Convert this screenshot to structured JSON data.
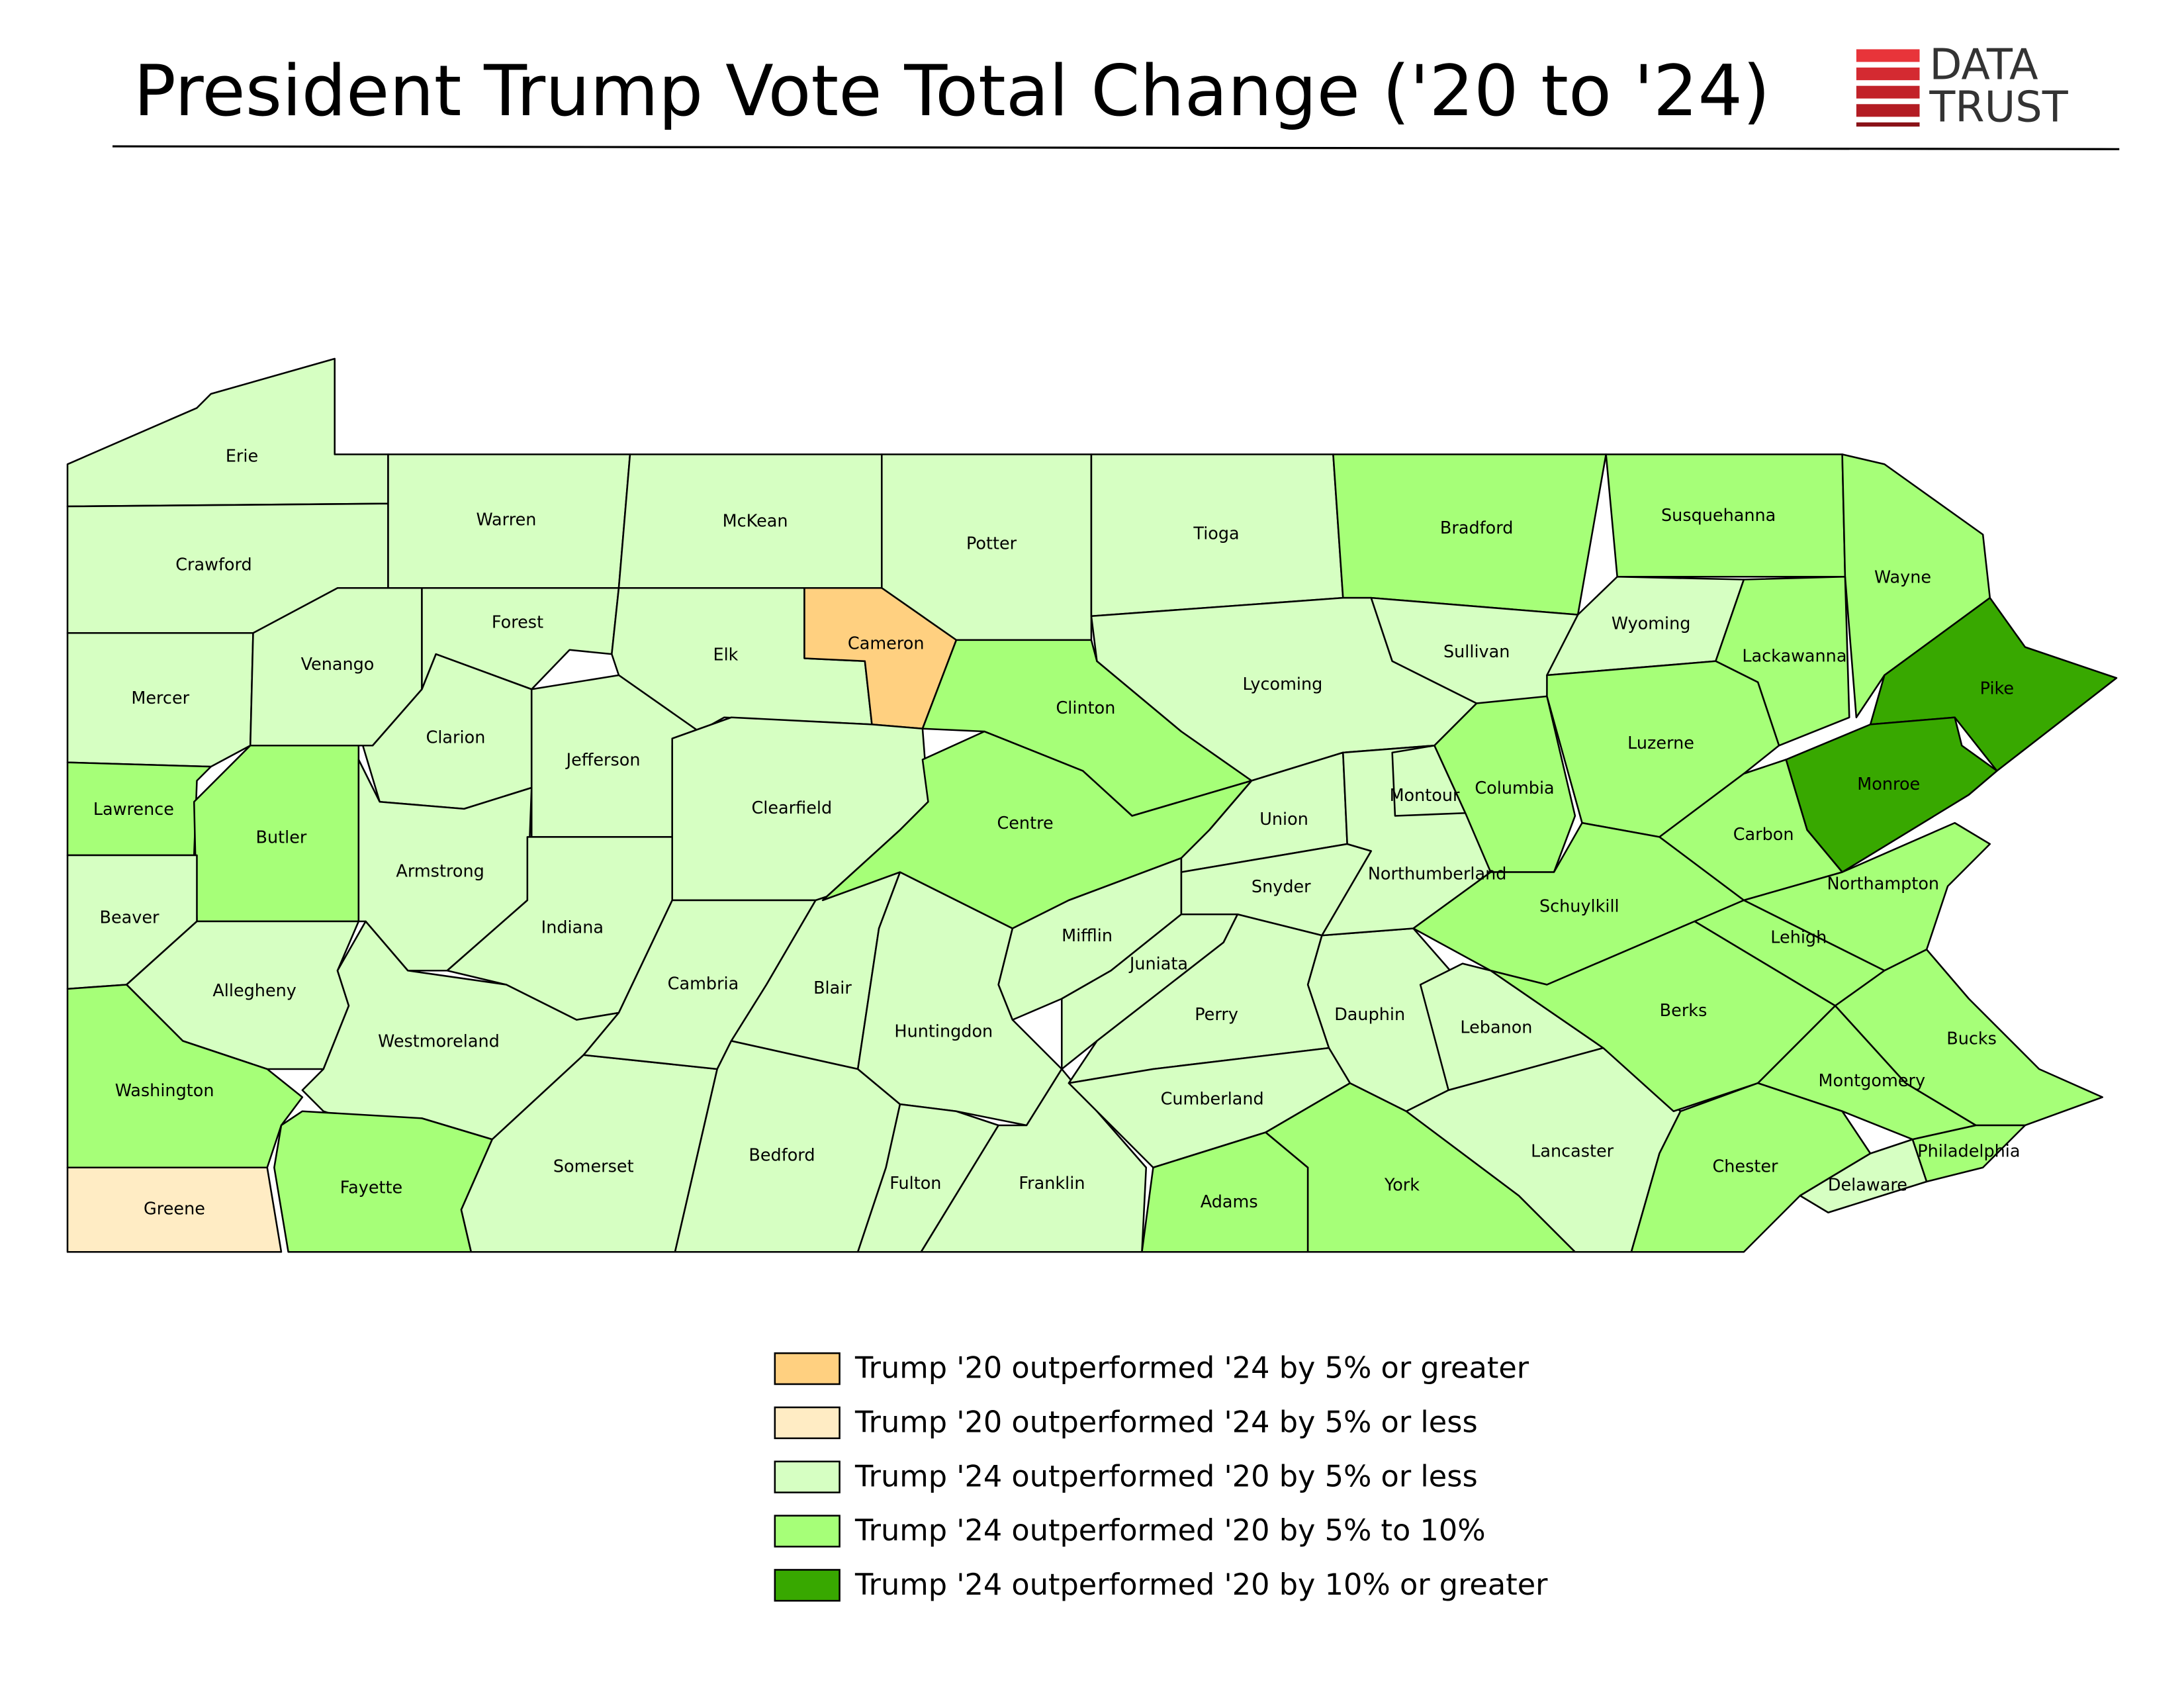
{
  "title": "President Trump Vote Total Change ('20 to '24)",
  "logo": [
    "DATA",
    "TRUST"
  ],
  "legend": [
    {
      "label": "Trump '20 outperformed '24 by 5% or greater",
      "color": "#ffd080"
    },
    {
      "label": "Trump '20 outperformed '24 by 5% or less",
      "color": "#ffecc4"
    },
    {
      "label": "Trump '24 outperformed '20 by 5% or less",
      "color": "#d6ffc2"
    },
    {
      "label": "Trump '24 outperformed '20 by 5% to 10%",
      "color": "#a6ff78"
    },
    {
      "label": "Trump '24 outperformed '20 by 10% or greater",
      "color": "#38a800"
    }
  ],
  "counties": [
    {
      "name": "Erie",
      "category": 2
    },
    {
      "name": "Crawford",
      "category": 2
    },
    {
      "name": "Warren",
      "category": 2
    },
    {
      "name": "McKean",
      "category": 2
    },
    {
      "name": "Potter",
      "category": 2
    },
    {
      "name": "Tioga",
      "category": 2
    },
    {
      "name": "Bradford",
      "category": 3
    },
    {
      "name": "Susquehanna",
      "category": 3
    },
    {
      "name": "Wayne",
      "category": 3
    },
    {
      "name": "Mercer",
      "category": 2
    },
    {
      "name": "Venango",
      "category": 2
    },
    {
      "name": "Forest",
      "category": 2
    },
    {
      "name": "Elk",
      "category": 2
    },
    {
      "name": "Cameron",
      "category": 0
    },
    {
      "name": "Clarion",
      "category": 2
    },
    {
      "name": "Jefferson",
      "category": 2
    },
    {
      "name": "Clearfield",
      "category": 2
    },
    {
      "name": "Clinton",
      "category": 3
    },
    {
      "name": "Lycoming",
      "category": 2
    },
    {
      "name": "Sullivan",
      "category": 2
    },
    {
      "name": "Wyoming",
      "category": 2
    },
    {
      "name": "Lackawanna",
      "category": 3
    },
    {
      "name": "Pike",
      "category": 4
    },
    {
      "name": "Monroe",
      "category": 4
    },
    {
      "name": "Lawrence",
      "category": 3
    },
    {
      "name": "Butler",
      "category": 3
    },
    {
      "name": "Armstrong",
      "category": 2
    },
    {
      "name": "Indiana",
      "category": 2
    },
    {
      "name": "Beaver",
      "category": 2
    },
    {
      "name": "Allegheny",
      "category": 2
    },
    {
      "name": "Westmoreland",
      "category": 2
    },
    {
      "name": "Washington",
      "category": 3
    },
    {
      "name": "Greene",
      "category": 1
    },
    {
      "name": "Fayette",
      "category": 3
    },
    {
      "name": "Somerset",
      "category": 2
    },
    {
      "name": "Cambria",
      "category": 2
    },
    {
      "name": "Blair",
      "category": 2
    },
    {
      "name": "Bedford",
      "category": 2
    },
    {
      "name": "Huntingdon",
      "category": 2
    },
    {
      "name": "Fulton",
      "category": 2
    },
    {
      "name": "Franklin",
      "category": 2
    },
    {
      "name": "Centre",
      "category": 3
    },
    {
      "name": "Mifflin",
      "category": 2
    },
    {
      "name": "Juniata",
      "category": 2
    },
    {
      "name": "Union",
      "category": 2
    },
    {
      "name": "Snyder",
      "category": 2
    },
    {
      "name": "Perry",
      "category": 2
    },
    {
      "name": "Cumberland",
      "category": 2
    },
    {
      "name": "Adams",
      "category": 3
    },
    {
      "name": "York",
      "category": 3
    },
    {
      "name": "Dauphin",
      "category": 2
    },
    {
      "name": "Lebanon",
      "category": 2
    },
    {
      "name": "Lancaster",
      "category": 2
    },
    {
      "name": "Northumberland",
      "category": 2
    },
    {
      "name": "Montour",
      "category": 2
    },
    {
      "name": "Columbia",
      "category": 3
    },
    {
      "name": "Luzerne",
      "category": 3
    },
    {
      "name": "Carbon",
      "category": 3
    },
    {
      "name": "Schuylkill",
      "category": 3
    },
    {
      "name": "Northampton",
      "category": 3
    },
    {
      "name": "Lehigh",
      "category": 3
    },
    {
      "name": "Berks",
      "category": 3
    },
    {
      "name": "Bucks",
      "category": 3
    },
    {
      "name": "Montgomery",
      "category": 3
    },
    {
      "name": "Chester",
      "category": 3
    },
    {
      "name": "Delaware",
      "category": 2
    },
    {
      "name": "Philadelphia",
      "category": 3
    }
  ]
}
